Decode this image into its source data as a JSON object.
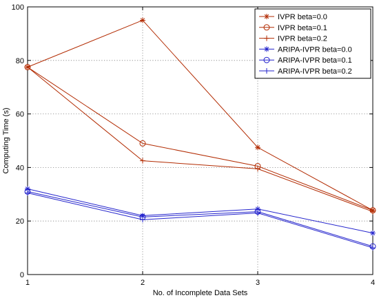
{
  "chart_data": {
    "type": "line",
    "title": "",
    "xlabel": "No. of Incomplete Data Sets",
    "ylabel": "Computing Time (s)",
    "xlim": [
      1,
      4
    ],
    "ylim": [
      0,
      100
    ],
    "x_ticks": [
      1,
      2,
      3,
      4
    ],
    "y_ticks": [
      0,
      20,
      40,
      60,
      80,
      100
    ],
    "grid": true,
    "legend_position": "top-right",
    "x": [
      1,
      2,
      3,
      4
    ],
    "series": [
      {
        "name": "IVPR beta=0.0",
        "values": [
          77.5,
          95,
          47.5,
          24
        ],
        "color": "#b22a00",
        "marker": "asterisk"
      },
      {
        "name": "IVPR beta=0.1",
        "values": [
          77.5,
          49,
          40.5,
          24
        ],
        "color": "#b22a00",
        "marker": "circle"
      },
      {
        "name": "IVPR beta=0.2",
        "values": [
          77.5,
          42.5,
          39.5,
          23.5
        ],
        "color": "#b22a00",
        "marker": "plus"
      },
      {
        "name": "ARIPA-IVPR beta=0.0",
        "values": [
          32,
          22,
          24.5,
          15.5
        ],
        "color": "#2222cc",
        "marker": "asterisk"
      },
      {
        "name": "ARIPA-IVPR beta=0.1",
        "values": [
          31,
          21.5,
          23.5,
          10.5
        ],
        "color": "#2222cc",
        "marker": "circle"
      },
      {
        "name": "ARIPA-IVPR beta=0.2",
        "values": [
          30.5,
          20.5,
          23,
          10
        ],
        "color": "#2222cc",
        "marker": "plus"
      }
    ]
  }
}
